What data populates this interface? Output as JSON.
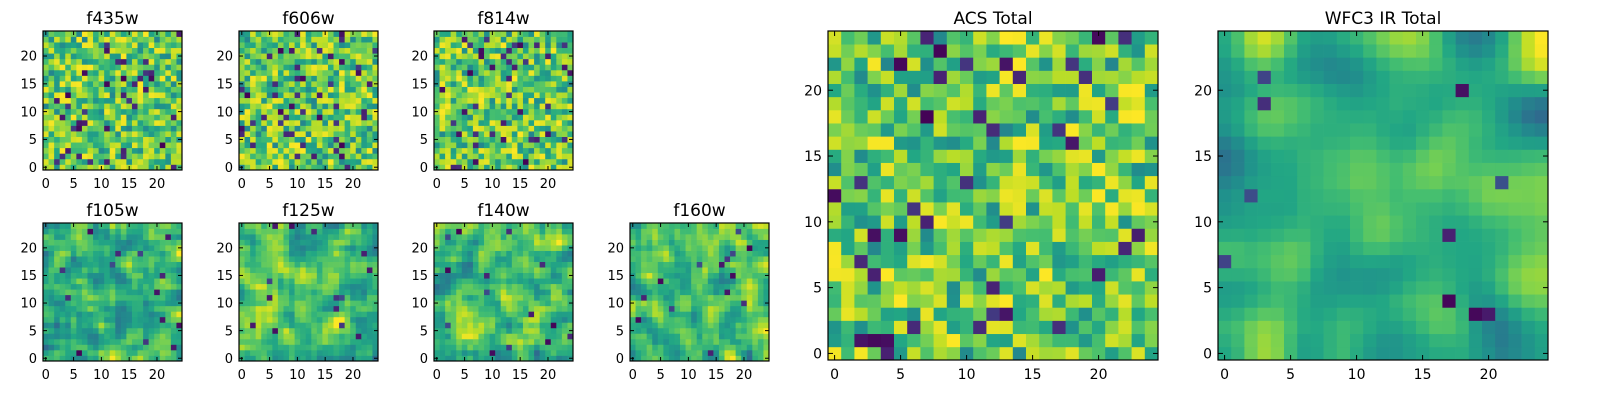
{
  "figure": {
    "colormap": "viridis",
    "vmin": 0,
    "vmax": 1,
    "pixel_grid": 25
  },
  "chart_data": [
    {
      "type": "heatmap",
      "title": "f435w",
      "grid": 25,
      "xticks": [
        0,
        5,
        10,
        15,
        20
      ],
      "yticks": [
        0,
        5,
        10,
        15,
        20
      ],
      "xlim": [
        -0.5,
        24.5
      ],
      "ylim": [
        -0.5,
        24.5
      ],
      "texture": "noise",
      "seed": 11
    },
    {
      "type": "heatmap",
      "title": "f606w",
      "grid": 25,
      "xticks": [
        0,
        5,
        10,
        15,
        20
      ],
      "yticks": [
        0,
        5,
        10,
        15,
        20
      ],
      "xlim": [
        -0.5,
        24.5
      ],
      "ylim": [
        -0.5,
        24.5
      ],
      "texture": "noise",
      "seed": 23
    },
    {
      "type": "heatmap",
      "title": "f814w",
      "grid": 25,
      "xticks": [
        0,
        5,
        10,
        15,
        20
      ],
      "yticks": [
        0,
        5,
        10,
        15,
        20
      ],
      "xlim": [
        -0.5,
        24.5
      ],
      "ylim": [
        -0.5,
        24.5
      ],
      "texture": "noise",
      "seed": 37
    },
    {
      "type": "heatmap",
      "title": "f105w",
      "grid": 25,
      "xticks": [
        0,
        5,
        10,
        15,
        20
      ],
      "yticks": [
        0,
        5,
        10,
        15,
        20
      ],
      "xlim": [
        -0.5,
        24.5
      ],
      "ylim": [
        -0.5,
        24.5
      ],
      "texture": "smooth",
      "seed": 41
    },
    {
      "type": "heatmap",
      "title": "f125w",
      "grid": 25,
      "xticks": [
        0,
        5,
        10,
        15,
        20
      ],
      "yticks": [
        0,
        5,
        10,
        15,
        20
      ],
      "xlim": [
        -0.5,
        24.5
      ],
      "ylim": [
        -0.5,
        24.5
      ],
      "texture": "smooth",
      "seed": 53
    },
    {
      "type": "heatmap",
      "title": "f140w",
      "grid": 25,
      "xticks": [
        0,
        5,
        10,
        15,
        20
      ],
      "yticks": [
        0,
        5,
        10,
        15,
        20
      ],
      "xlim": [
        -0.5,
        24.5
      ],
      "ylim": [
        -0.5,
        24.5
      ],
      "texture": "smooth",
      "seed": 67
    },
    {
      "type": "heatmap",
      "title": "f160w",
      "grid": 25,
      "xticks": [
        0,
        5,
        10,
        15,
        20
      ],
      "yticks": [
        0,
        5,
        10,
        15,
        20
      ],
      "xlim": [
        -0.5,
        24.5
      ],
      "ylim": [
        -0.5,
        24.5
      ],
      "texture": "smooth",
      "seed": 79
    },
    {
      "type": "heatmap",
      "title": "ACS Total",
      "grid": 25,
      "xticks": [
        0,
        5,
        10,
        15,
        20
      ],
      "yticks": [
        0,
        5,
        10,
        15,
        20
      ],
      "xlim": [
        -0.5,
        24.5
      ],
      "ylim": [
        -0.5,
        24.5
      ],
      "texture": "noise",
      "seed": 97
    },
    {
      "type": "heatmap",
      "title": "WFC3 IR Total",
      "grid": 25,
      "xticks": [
        0,
        5,
        10,
        15,
        20
      ],
      "yticks": [
        0,
        5,
        10,
        15,
        20
      ],
      "xlim": [
        -0.5,
        24.5
      ],
      "ylim": [
        -0.5,
        24.5
      ],
      "texture": "blob",
      "seed": 113
    }
  ]
}
